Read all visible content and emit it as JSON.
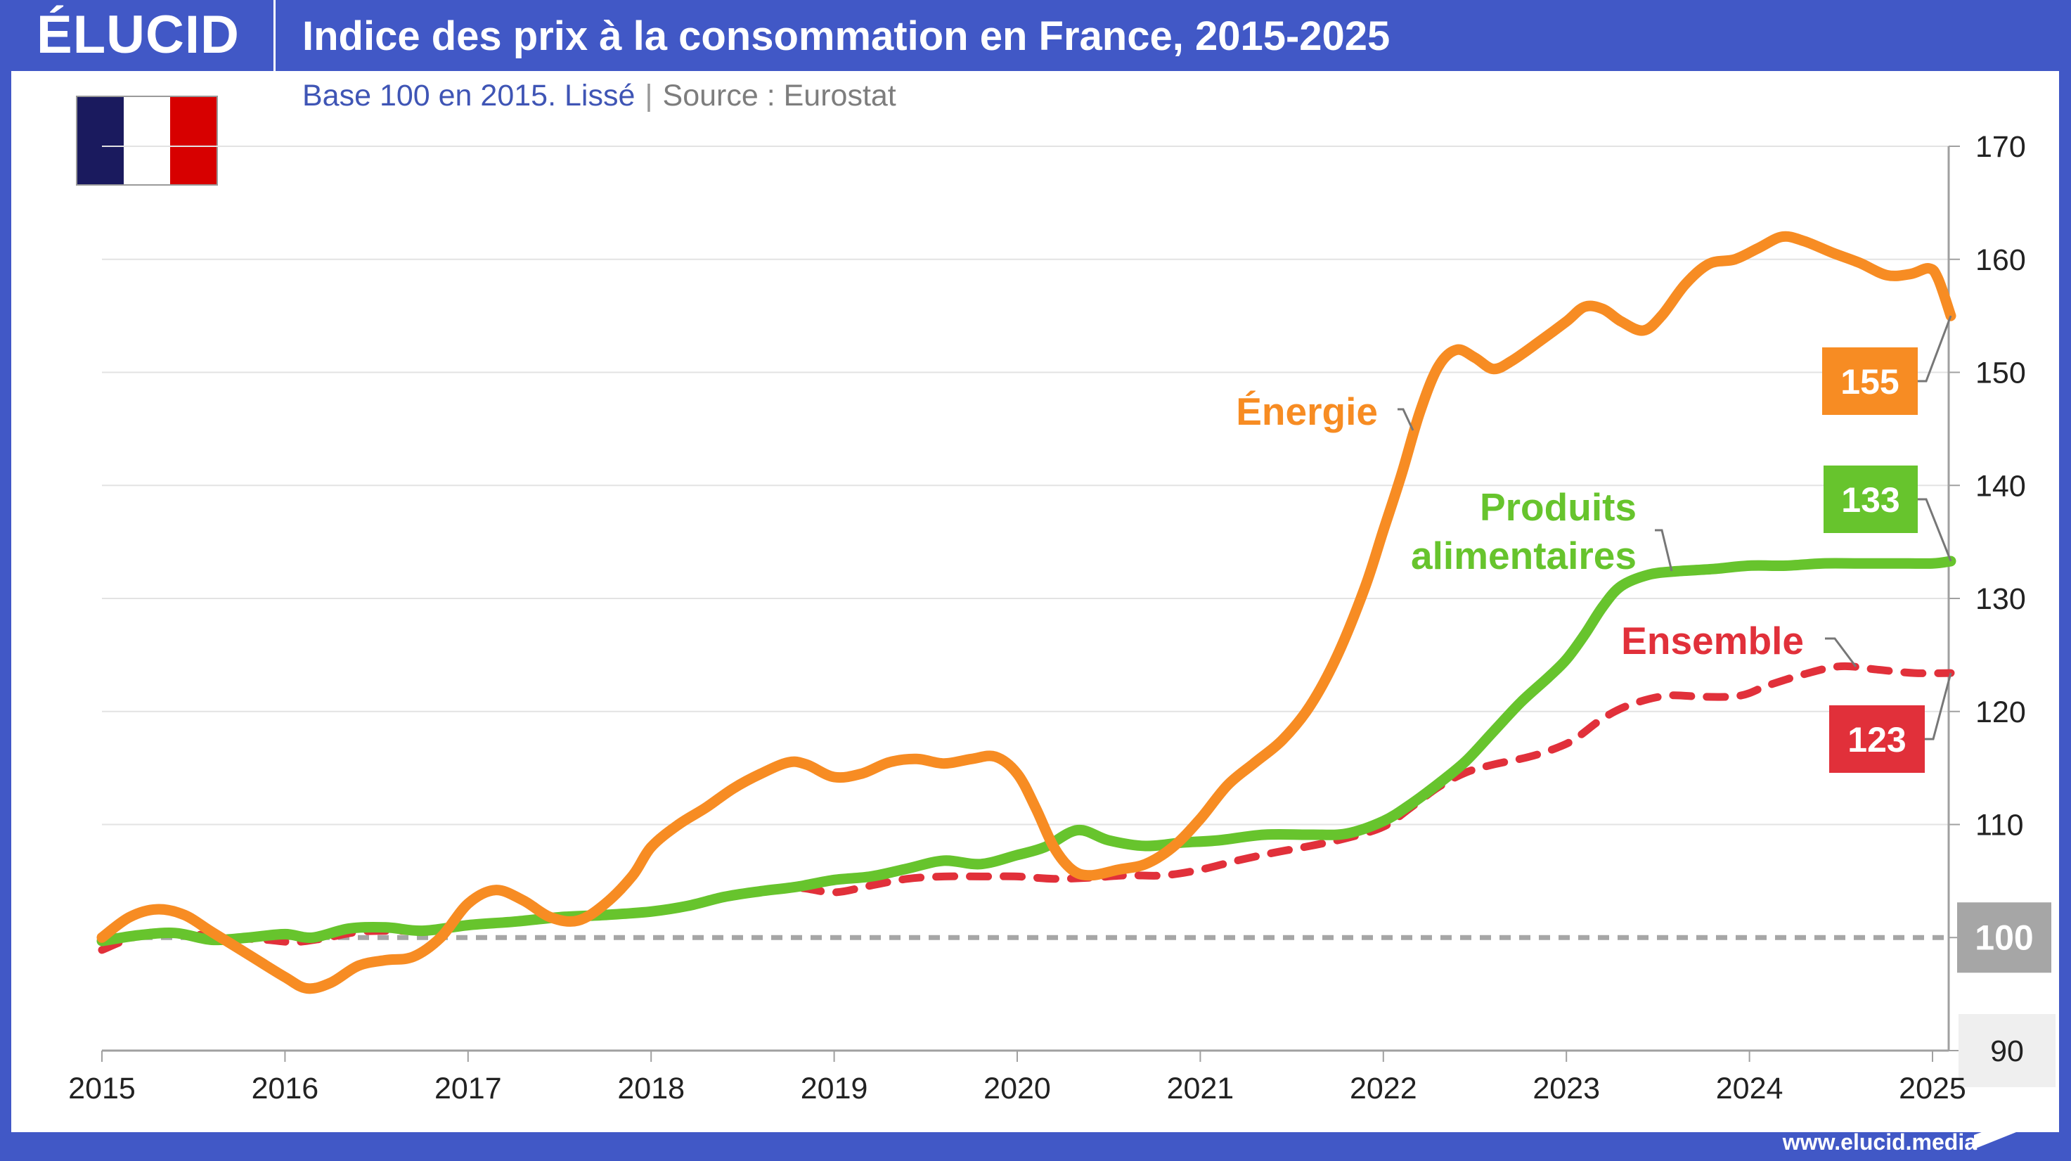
{
  "header": {
    "logo": "ÉLUCID",
    "title": "Indice des prix à la consommation en France, 2015-2025",
    "subtitle_base": "Base 100 en 2015. Lissé",
    "subtitle_sep": "|",
    "subtitle_source": "Source : Eurostat"
  },
  "flag": {
    "country": "France",
    "colors": [
      "#1A1A5E",
      "#FFFFFF",
      "#D70000"
    ]
  },
  "footer": {
    "url": "www.elucid.media"
  },
  "colors": {
    "brand": "#4158C6",
    "energie": "#F78C23",
    "alimentaires": "#67C42D",
    "ensemble": "#E1303A",
    "baseline": "#A6A6A6",
    "grid": "#E3E3E3",
    "axis": "#A0A0A0"
  },
  "chart_data": {
    "type": "line",
    "title": "Indice des prix à la consommation en France, 2015-2025",
    "subtitle": "Base 100 en 2015. Lissé | Source : Eurostat",
    "xlabel": "",
    "ylabel": "",
    "xlim": [
      2015,
      2025.1
    ],
    "ylim": [
      90,
      170
    ],
    "x_ticks": [
      2015,
      2016,
      2017,
      2018,
      2019,
      2020,
      2021,
      2022,
      2023,
      2024,
      2025
    ],
    "x_tick_labels": [
      "2015",
      "2016",
      "2017",
      "2018",
      "2019",
      "2020",
      "2021",
      "2022",
      "2023",
      "2024",
      "2025"
    ],
    "y_ticks": [
      90,
      100,
      110,
      120,
      130,
      140,
      150,
      160,
      170
    ],
    "y_tick_labels": [
      "90",
      "100",
      "110",
      "120",
      "130",
      "140",
      "150",
      "160",
      "170"
    ],
    "y_axis_side": "right",
    "grid": true,
    "baseline": {
      "value": 100,
      "label": "100",
      "style": "dashed"
    },
    "series": [
      {
        "name": "Énergie",
        "label": "Énergie",
        "end_value_label": "155",
        "style": "solid",
        "points": [
          [
            2015.0,
            100
          ],
          [
            2015.15,
            101.8
          ],
          [
            2015.3,
            102.5
          ],
          [
            2015.45,
            102
          ],
          [
            2015.6,
            100.5
          ],
          [
            2015.8,
            98.5
          ],
          [
            2016.0,
            96.5
          ],
          [
            2016.12,
            95.5
          ],
          [
            2016.25,
            96
          ],
          [
            2016.4,
            97.5
          ],
          [
            2016.55,
            98
          ],
          [
            2016.7,
            98.3
          ],
          [
            2016.85,
            100
          ],
          [
            2017.0,
            103
          ],
          [
            2017.15,
            104.2
          ],
          [
            2017.3,
            103.3
          ],
          [
            2017.45,
            101.8
          ],
          [
            2017.6,
            101.5
          ],
          [
            2017.75,
            103
          ],
          [
            2017.9,
            105.5
          ],
          [
            2018.0,
            108
          ],
          [
            2018.15,
            110
          ],
          [
            2018.3,
            111.5
          ],
          [
            2018.45,
            113.2
          ],
          [
            2018.6,
            114.5
          ],
          [
            2018.75,
            115.5
          ],
          [
            2018.85,
            115.3
          ],
          [
            2019.0,
            114.2
          ],
          [
            2019.15,
            114.5
          ],
          [
            2019.3,
            115.5
          ],
          [
            2019.45,
            115.8
          ],
          [
            2019.6,
            115.4
          ],
          [
            2019.75,
            115.8
          ],
          [
            2019.88,
            116
          ],
          [
            2020.0,
            114.5
          ],
          [
            2020.1,
            111.5
          ],
          [
            2020.2,
            108
          ],
          [
            2020.3,
            106
          ],
          [
            2020.4,
            105.5
          ],
          [
            2020.55,
            106
          ],
          [
            2020.7,
            106.5
          ],
          [
            2020.85,
            108
          ],
          [
            2021.0,
            110.5
          ],
          [
            2021.15,
            113.5
          ],
          [
            2021.3,
            115.5
          ],
          [
            2021.45,
            117.5
          ],
          [
            2021.6,
            120.5
          ],
          [
            2021.75,
            125
          ],
          [
            2021.9,
            131
          ],
          [
            2022.0,
            136
          ],
          [
            2022.1,
            141
          ],
          [
            2022.2,
            146.5
          ],
          [
            2022.3,
            150.5
          ],
          [
            2022.4,
            152
          ],
          [
            2022.5,
            151.3
          ],
          [
            2022.6,
            150.3
          ],
          [
            2022.7,
            151
          ],
          [
            2022.85,
            152.7
          ],
          [
            2023.0,
            154.5
          ],
          [
            2023.1,
            155.8
          ],
          [
            2023.2,
            155.6
          ],
          [
            2023.3,
            154.5
          ],
          [
            2023.42,
            153.7
          ],
          [
            2023.52,
            155
          ],
          [
            2023.65,
            157.8
          ],
          [
            2023.78,
            159.6
          ],
          [
            2023.92,
            160
          ],
          [
            2024.05,
            161
          ],
          [
            2024.18,
            162
          ],
          [
            2024.3,
            161.6
          ],
          [
            2024.45,
            160.6
          ],
          [
            2024.6,
            159.7
          ],
          [
            2024.75,
            158.6
          ],
          [
            2024.88,
            158.7
          ],
          [
            2024.98,
            159.2
          ],
          [
            2025.03,
            158.3
          ],
          [
            2025.1,
            155
          ]
        ]
      },
      {
        "name": "Produits alimentaires",
        "label_lines": [
          "Produits",
          "alimentaires"
        ],
        "end_value_label": "133",
        "style": "solid",
        "points": [
          [
            2015.0,
            99.7
          ],
          [
            2015.2,
            100.2
          ],
          [
            2015.4,
            100.4
          ],
          [
            2015.6,
            99.8
          ],
          [
            2015.8,
            100
          ],
          [
            2016.0,
            100.3
          ],
          [
            2016.15,
            100
          ],
          [
            2016.35,
            100.8
          ],
          [
            2016.55,
            100.9
          ],
          [
            2016.75,
            100.6
          ],
          [
            2017.0,
            101.1
          ],
          [
            2017.25,
            101.4
          ],
          [
            2017.5,
            101.8
          ],
          [
            2017.75,
            102
          ],
          [
            2018.0,
            102.3
          ],
          [
            2018.2,
            102.8
          ],
          [
            2018.4,
            103.6
          ],
          [
            2018.6,
            104.1
          ],
          [
            2018.8,
            104.5
          ],
          [
            2019.0,
            105.1
          ],
          [
            2019.2,
            105.4
          ],
          [
            2019.4,
            106.1
          ],
          [
            2019.6,
            106.8
          ],
          [
            2019.8,
            106.5
          ],
          [
            2020.0,
            107.3
          ],
          [
            2020.15,
            108
          ],
          [
            2020.33,
            109.5
          ],
          [
            2020.5,
            108.6
          ],
          [
            2020.7,
            108.1
          ],
          [
            2020.9,
            108.4
          ],
          [
            2021.1,
            108.6
          ],
          [
            2021.35,
            109.1
          ],
          [
            2021.6,
            109.1
          ],
          [
            2021.8,
            109.2
          ],
          [
            2022.0,
            110.3
          ],
          [
            2022.15,
            111.8
          ],
          [
            2022.3,
            113.6
          ],
          [
            2022.45,
            115.6
          ],
          [
            2022.6,
            118.2
          ],
          [
            2022.75,
            120.8
          ],
          [
            2022.9,
            123
          ],
          [
            2023.0,
            124.6
          ],
          [
            2023.1,
            126.8
          ],
          [
            2023.2,
            129.3
          ],
          [
            2023.3,
            131.1
          ],
          [
            2023.45,
            132.1
          ],
          [
            2023.6,
            132.4
          ],
          [
            2023.8,
            132.6
          ],
          [
            2024.0,
            132.9
          ],
          [
            2024.2,
            132.9
          ],
          [
            2024.4,
            133.1
          ],
          [
            2024.6,
            133.1
          ],
          [
            2024.8,
            133.1
          ],
          [
            2025.0,
            133.1
          ],
          [
            2025.1,
            133.3
          ]
        ]
      },
      {
        "name": "Ensemble",
        "label": "Ensemble",
        "end_value_label": "123",
        "style": "dashed",
        "points": [
          [
            2015.0,
            98.9
          ],
          [
            2015.15,
            99.9
          ],
          [
            2015.3,
            100.5
          ],
          [
            2015.5,
            100.3
          ],
          [
            2015.7,
            100
          ],
          [
            2015.9,
            99.8
          ],
          [
            2016.05,
            99.6
          ],
          [
            2016.2,
            99.9
          ],
          [
            2016.4,
            100.5
          ],
          [
            2016.6,
            100.6
          ],
          [
            2016.8,
            100.6
          ],
          [
            2017.0,
            101
          ],
          [
            2017.25,
            101.3
          ],
          [
            2017.5,
            101.7
          ],
          [
            2017.75,
            101.9
          ],
          [
            2018.0,
            102.3
          ],
          [
            2018.2,
            102.8
          ],
          [
            2018.4,
            103.7
          ],
          [
            2018.6,
            104.1
          ],
          [
            2018.8,
            104.4
          ],
          [
            2019.0,
            104
          ],
          [
            2019.2,
            104.6
          ],
          [
            2019.4,
            105.2
          ],
          [
            2019.6,
            105.4
          ],
          [
            2019.8,
            105.4
          ],
          [
            2020.0,
            105.4
          ],
          [
            2020.2,
            105.2
          ],
          [
            2020.4,
            105.3
          ],
          [
            2020.6,
            105.5
          ],
          [
            2020.8,
            105.5
          ],
          [
            2021.0,
            106
          ],
          [
            2021.2,
            106.8
          ],
          [
            2021.4,
            107.5
          ],
          [
            2021.6,
            108.1
          ],
          [
            2021.8,
            108.8
          ],
          [
            2022.0,
            109.8
          ],
          [
            2022.15,
            111.5
          ],
          [
            2022.3,
            113.3
          ],
          [
            2022.45,
            114.6
          ],
          [
            2022.6,
            115.3
          ],
          [
            2022.8,
            116
          ],
          [
            2022.95,
            116.8
          ],
          [
            2023.05,
            117.6
          ],
          [
            2023.2,
            119.4
          ],
          [
            2023.35,
            120.6
          ],
          [
            2023.55,
            121.4
          ],
          [
            2023.75,
            121.3
          ],
          [
            2023.95,
            121.4
          ],
          [
            2024.1,
            122.3
          ],
          [
            2024.3,
            123.3
          ],
          [
            2024.5,
            124
          ],
          [
            2024.7,
            123.7
          ],
          [
            2024.9,
            123.4
          ],
          [
            2025.1,
            123.4
          ]
        ]
      }
    ],
    "annotations": [
      {
        "text": "155",
        "series": "Énergie",
        "type": "end-value-box"
      },
      {
        "text": "133",
        "series": "Produits alimentaires",
        "type": "end-value-box"
      },
      {
        "text": "123",
        "series": "Ensemble",
        "type": "end-value-box"
      },
      {
        "text": "100",
        "type": "baseline-box"
      }
    ]
  }
}
